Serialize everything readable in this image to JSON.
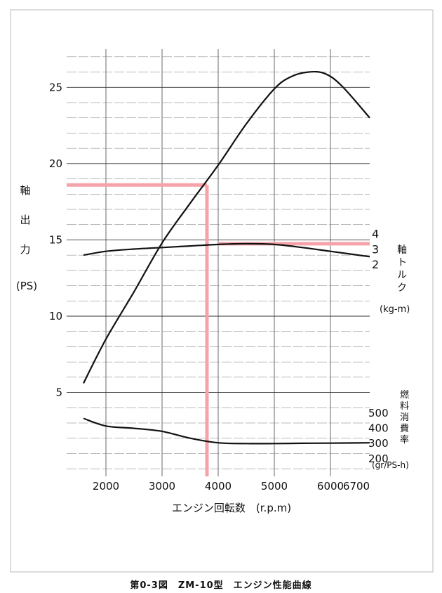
{
  "caption": "第0-3図　ZM-10型　エンジン性能曲線",
  "chart_data": {
    "type": "line",
    "xlabel": "エンジン回転数　(r.p.m)",
    "x_ticks": [
      2000,
      3000,
      4000,
      5000,
      6000,
      6700
    ],
    "x_tick_labels": [
      "2000",
      "3000",
      "4000",
      "5000",
      "6000",
      "6700"
    ],
    "xlim": [
      1300,
      6700
    ],
    "grid": true,
    "power_axis": {
      "label_lines": [
        "軸",
        "出",
        "力",
        "(PS)"
      ],
      "ticks": [
        5,
        10,
        15,
        20,
        25
      ],
      "tick_labels": [
        "5",
        "10",
        "15",
        "20",
        "25"
      ],
      "ylim": [
        -0.5,
        27.5
      ]
    },
    "torque_axis": {
      "label_lines": [
        "軸",
        "ト",
        "ル",
        "ク"
      ],
      "unit": "(kg-m)",
      "ticks": [
        2,
        3,
        4
      ],
      "tick_labels": [
        "2",
        "3",
        "4"
      ]
    },
    "fuel_axis": {
      "label_lines": [
        "燃",
        "料",
        "消",
        "費",
        "率"
      ],
      "unit": "(gr/PS-h)",
      "ticks": [
        200,
        300,
        400,
        500
      ],
      "tick_labels": [
        "200",
        "300",
        "400",
        "500"
      ]
    },
    "series": [
      {
        "axis": "power",
        "x": [
          1600,
          2000,
          2500,
          3000,
          3500,
          4000,
          4500,
          5000,
          5300,
          5600,
          5900,
          6200,
          6700
        ],
        "values": [
          5.6,
          8.5,
          11.6,
          14.8,
          17.4,
          19.9,
          22.6,
          24.9,
          25.7,
          26.0,
          25.9,
          25.1,
          23.0
        ]
      },
      {
        "axis": "torque",
        "x": [
          1600,
          2000,
          2500,
          3000,
          3500,
          4000,
          4500,
          5000,
          5500,
          6000,
          6700
        ],
        "values": [
          2.6,
          2.85,
          3.0,
          3.1,
          3.2,
          3.3,
          3.35,
          3.3,
          3.1,
          2.85,
          2.5
        ]
      },
      {
        "axis": "fuel",
        "x": [
          1600,
          2000,
          2500,
          3000,
          3500,
          4000,
          4500,
          5000,
          5500,
          6000,
          6700
        ],
        "values": [
          460,
          410,
          395,
          375,
          330,
          300,
          295,
          295,
          297,
          298,
          300
        ]
      }
    ],
    "highlight": {
      "rpm": 3800,
      "power": 18.6,
      "torque": 3.35,
      "color": "#f4a3a8"
    }
  }
}
